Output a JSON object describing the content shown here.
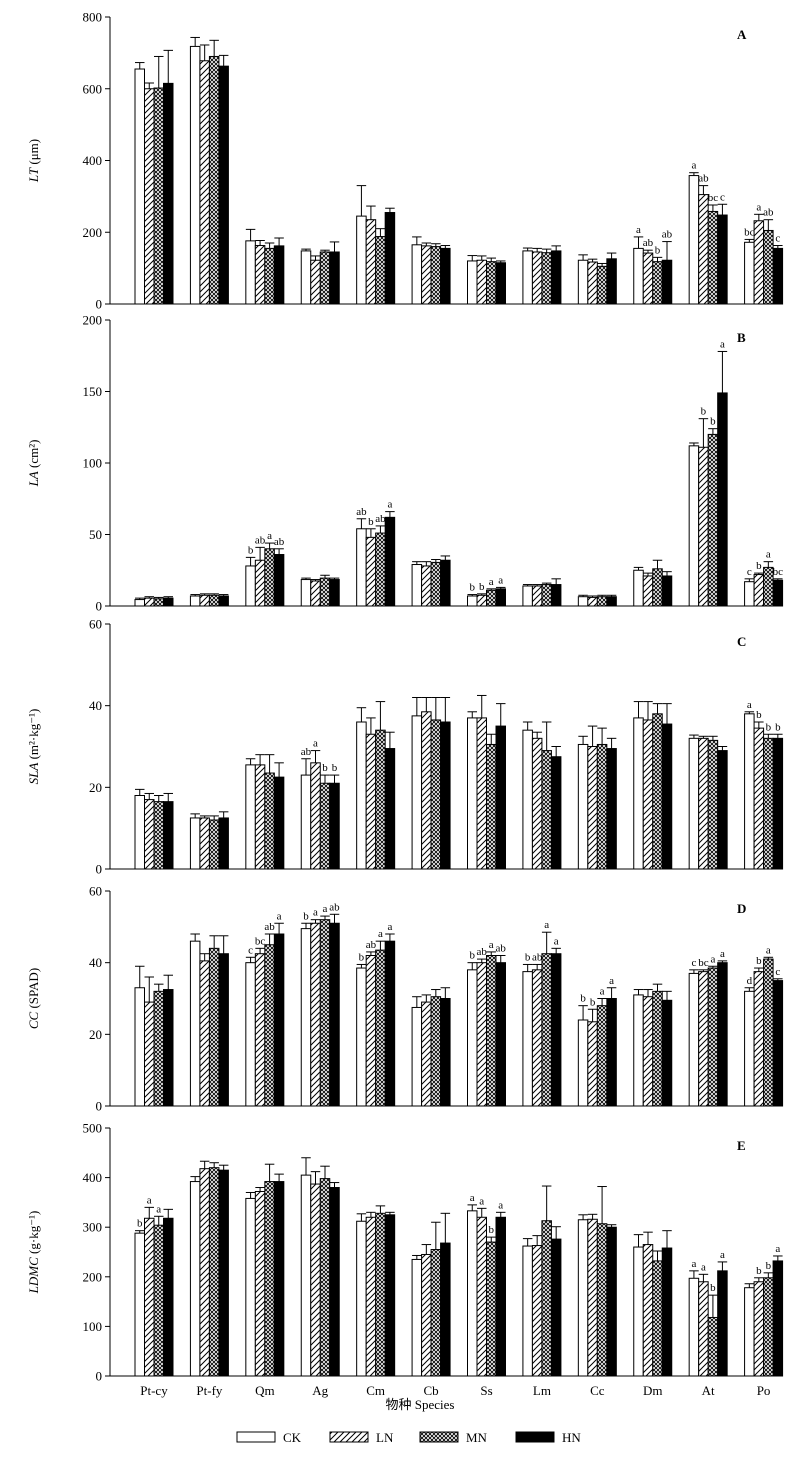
{
  "chart_data": {
    "type": "bar",
    "categories": [
      "Pt-cy",
      "Pt-fy",
      "Qm",
      "Ag",
      "Cm",
      "Cb",
      "Ss",
      "Lm",
      "Cc",
      "Dm",
      "At",
      "Po"
    ],
    "series_names": [
      "CK",
      "LN",
      "MN",
      "HN"
    ],
    "xlabel": "物种 Species",
    "panels": [
      {
        "id": "A",
        "ylabel_var": "LT",
        "ylabel_unit": " (μm)",
        "ylim": [
          0,
          800
        ],
        "yticks": [
          0,
          200,
          400,
          600,
          800
        ],
        "values": [
          [
            655,
            600,
            602,
            615
          ],
          [
            718,
            678,
            690,
            663
          ],
          [
            176,
            163,
            155,
            162
          ],
          [
            148,
            122,
            145,
            145
          ],
          [
            245,
            235,
            188,
            255
          ],
          [
            165,
            162,
            160,
            155
          ],
          [
            120,
            122,
            118,
            115
          ],
          [
            148,
            145,
            143,
            148
          ],
          [
            122,
            117,
            105,
            126
          ],
          [
            155,
            142,
            118,
            122
          ],
          [
            358,
            305,
            258,
            248
          ],
          [
            172,
            232,
            205,
            155
          ]
        ],
        "errors": [
          [
            18,
            16,
            88,
            92
          ],
          [
            25,
            44,
            45,
            30
          ],
          [
            32,
            14,
            15,
            22
          ],
          [
            5,
            12,
            5,
            28
          ],
          [
            85,
            38,
            22,
            12
          ],
          [
            22,
            8,
            8,
            8
          ],
          [
            15,
            12,
            10,
            5
          ],
          [
            8,
            10,
            10,
            14
          ],
          [
            15,
            8,
            8,
            16
          ],
          [
            32,
            8,
            12,
            52
          ],
          [
            8,
            25,
            18,
            30
          ],
          [
            8,
            18,
            30,
            8
          ]
        ],
        "letters": [
          [
            "",
            "",
            "",
            ""
          ],
          [
            "",
            "",
            "",
            ""
          ],
          [
            "",
            "",
            "",
            ""
          ],
          [
            "",
            "",
            "",
            ""
          ],
          [
            "",
            "",
            "",
            ""
          ],
          [
            "",
            "",
            "",
            ""
          ],
          [
            "",
            "",
            "",
            ""
          ],
          [
            "",
            "",
            "",
            ""
          ],
          [
            "",
            "",
            "",
            ""
          ],
          [
            "a",
            "ab",
            "b",
            "ab"
          ],
          [
            "a",
            "ab",
            "bc",
            "c"
          ],
          [
            "bc",
            "a",
            "ab",
            "c"
          ]
        ]
      },
      {
        "id": "B",
        "ylabel_var": "LA",
        "ylabel_unit": " (cm²)",
        "ylim": [
          0,
          200
        ],
        "yticks": [
          0,
          50,
          100,
          150,
          200
        ],
        "values": [
          [
            4.5,
            5.5,
            5,
            5.5
          ],
          [
            7,
            7.5,
            7.5,
            7
          ],
          [
            28,
            32,
            40,
            36
          ],
          [
            18.5,
            17.5,
            19.5,
            18.5
          ],
          [
            54,
            48,
            51,
            62
          ],
          [
            29,
            28,
            30.5,
            32
          ],
          [
            7,
            7.5,
            11,
            12
          ],
          [
            14,
            14,
            15,
            15
          ],
          [
            6.5,
            6,
            6.5,
            6.5
          ],
          [
            25,
            21,
            26,
            21
          ],
          [
            112,
            111,
            120,
            149
          ],
          [
            17,
            22,
            27,
            18
          ]
        ],
        "errors": [
          [
            1,
            1,
            1,
            1
          ],
          [
            1,
            1,
            1,
            1
          ],
          [
            6,
            9,
            4,
            4
          ],
          [
            1,
            1,
            2,
            1
          ],
          [
            7,
            6,
            5,
            4
          ],
          [
            2,
            3,
            2,
            3
          ],
          [
            1,
            1,
            1,
            1
          ],
          [
            1,
            1,
            1,
            4
          ],
          [
            1,
            1,
            1,
            1
          ],
          [
            2,
            2,
            6,
            3
          ],
          [
            2,
            20,
            4,
            29
          ],
          [
            2,
            1,
            4,
            1
          ]
        ],
        "letters": [
          [
            "",
            "",
            "",
            ""
          ],
          [
            "",
            "",
            "",
            ""
          ],
          [
            "b",
            "ab",
            "a",
            "ab"
          ],
          [
            "",
            "",
            "",
            ""
          ],
          [
            "ab",
            "b",
            "ab",
            "a"
          ],
          [
            "",
            "",
            "",
            ""
          ],
          [
            "b",
            "b",
            "a",
            "a"
          ],
          [
            "",
            "",
            "",
            ""
          ],
          [
            "",
            "",
            "",
            ""
          ],
          [
            "",
            "",
            "",
            ""
          ],
          [
            "",
            "b",
            "b",
            "a"
          ],
          [
            "c",
            "b",
            "a",
            "bc"
          ]
        ]
      },
      {
        "id": "C",
        "ylabel_var": "SLA",
        "ylabel_unit": " (m²·kg⁻¹)",
        "ylim": [
          0,
          60
        ],
        "yticks": [
          0,
          20,
          40,
          60
        ],
        "values": [
          [
            18,
            17,
            16.5,
            16.5
          ],
          [
            12.5,
            12.5,
            12,
            12.5
          ],
          [
            25.5,
            25.5,
            23.5,
            22.5
          ],
          [
            23,
            26,
            21,
            21
          ],
          [
            36,
            33,
            34,
            29.5
          ],
          [
            37.5,
            38.5,
            36.5,
            36
          ],
          [
            37,
            37,
            30.5,
            35
          ],
          [
            34,
            32,
            29,
            27.5
          ],
          [
            30.5,
            30,
            30.5,
            29.5
          ],
          [
            37,
            36.5,
            38,
            35.5
          ],
          [
            32,
            32,
            31.5,
            29
          ],
          [
            38,
            34.5,
            32,
            32
          ]
        ],
        "errors": [
          [
            1.5,
            1.5,
            1.5,
            2
          ],
          [
            1,
            0.5,
            1,
            1.5
          ],
          [
            1.5,
            2.5,
            4.5,
            3.5
          ],
          [
            4,
            3,
            2,
            2
          ],
          [
            3.5,
            4,
            7,
            4
          ],
          [
            4.5,
            3.5,
            5.5,
            6
          ],
          [
            1.5,
            5.5,
            2.5,
            5.5
          ],
          [
            2,
            1.5,
            7,
            2.5
          ],
          [
            2,
            5,
            4,
            2.5
          ],
          [
            4,
            4.5,
            2.5,
            5
          ],
          [
            0.8,
            0.5,
            1,
            1
          ],
          [
            0.5,
            1.5,
            1,
            1
          ]
        ],
        "letters": [
          [
            "",
            "",
            "",
            ""
          ],
          [
            "",
            "",
            "",
            ""
          ],
          [
            "",
            "",
            "",
            ""
          ],
          [
            "ab",
            "a",
            "b",
            "b"
          ],
          [
            "",
            "",
            "",
            ""
          ],
          [
            "",
            "",
            "",
            ""
          ],
          [
            "",
            "",
            "",
            ""
          ],
          [
            "",
            "",
            "",
            ""
          ],
          [
            "",
            "",
            "",
            ""
          ],
          [
            "",
            "",
            "",
            ""
          ],
          [
            "",
            "",
            "",
            ""
          ],
          [
            "a",
            "b",
            "b",
            "b"
          ]
        ]
      },
      {
        "id": "D",
        "ylabel_var": "CC",
        "ylabel_unit": " (SPAD)",
        "ylim": [
          0,
          60
        ],
        "yticks": [
          0,
          20,
          40,
          60
        ],
        "values": [
          [
            33,
            29,
            32,
            32.5
          ],
          [
            46,
            40.5,
            44,
            42.5
          ],
          [
            40,
            42.5,
            45,
            48
          ],
          [
            49.5,
            51,
            52,
            51
          ],
          [
            38.5,
            42,
            43.5,
            46
          ],
          [
            27.5,
            29,
            30.5,
            30
          ],
          [
            38,
            40,
            42,
            40
          ],
          [
            37.5,
            38,
            42.5,
            42.5
          ],
          [
            24,
            23.5,
            28,
            30
          ],
          [
            31,
            30.5,
            32,
            29.5
          ],
          [
            37,
            37.5,
            38.5,
            40
          ],
          [
            32,
            37.5,
            41,
            35
          ]
        ],
        "errors": [
          [
            6,
            7,
            2,
            4
          ],
          [
            2,
            2,
            3.5,
            5
          ],
          [
            1.5,
            1.5,
            3,
            3
          ],
          [
            1.5,
            1,
            1,
            2.5
          ],
          [
            1,
            1,
            2.5,
            2
          ],
          [
            3,
            2,
            2,
            3
          ],
          [
            2,
            1,
            1,
            2
          ],
          [
            2,
            1.5,
            6,
            1.5
          ],
          [
            4,
            3.5,
            2,
            3
          ],
          [
            1.5,
            2,
            2,
            2.5
          ],
          [
            1,
            0.5,
            0.5,
            0.5
          ],
          [
            1,
            1,
            0.5,
            0.5
          ]
        ],
        "letters": [
          [
            "",
            "",
            "",
            ""
          ],
          [
            "",
            "",
            "",
            ""
          ],
          [
            "c",
            "bc",
            "ab",
            "a"
          ],
          [
            "b",
            "a",
            "a",
            "ab"
          ],
          [
            "b",
            "ab",
            "a",
            "a"
          ],
          [
            "",
            "",
            "",
            ""
          ],
          [
            "b",
            "ab",
            "a",
            "ab"
          ],
          [
            "b",
            "ab",
            "a",
            "a"
          ],
          [
            "b",
            "b",
            "a",
            "a"
          ],
          [
            "",
            "",
            "",
            ""
          ],
          [
            "c",
            "bc",
            "a",
            "a"
          ],
          [
            "d",
            "b",
            "a",
            "c"
          ]
        ]
      },
      {
        "id": "E",
        "ylabel_var": "LDMC",
        "ylabel_unit": " (g·kg⁻¹)",
        "ylim": [
          0,
          500
        ],
        "yticks": [
          0,
          100,
          200,
          300,
          400,
          500
        ],
        "values": [
          [
            288,
            318,
            304,
            318
          ],
          [
            392,
            418,
            420,
            415
          ],
          [
            358,
            372,
            392,
            392
          ],
          [
            405,
            387,
            398,
            380
          ],
          [
            312,
            320,
            328,
            325
          ],
          [
            235,
            245,
            255,
            268
          ],
          [
            333,
            320,
            270,
            320
          ],
          [
            262,
            263,
            313,
            276
          ],
          [
            315,
            316,
            307,
            300
          ],
          [
            260,
            265,
            232,
            258
          ],
          [
            197,
            190,
            118,
            212
          ],
          [
            178,
            190,
            198,
            232
          ]
        ],
        "errors": [
          [
            5,
            22,
            18,
            18
          ],
          [
            10,
            15,
            10,
            10
          ],
          [
            12,
            8,
            35,
            15
          ],
          [
            35,
            25,
            25,
            10
          ],
          [
            15,
            10,
            15,
            5
          ],
          [
            8,
            20,
            55,
            60
          ],
          [
            12,
            18,
            10,
            10
          ],
          [
            15,
            20,
            70,
            25
          ],
          [
            10,
            10,
            75,
            5
          ],
          [
            25,
            25,
            20,
            35
          ],
          [
            15,
            15,
            45,
            18
          ],
          [
            8,
            8,
            10,
            10
          ]
        ],
        "letters": [
          [
            "b",
            "a",
            "a",
            ""
          ],
          [
            "",
            "",
            "",
            ""
          ],
          [
            "",
            "",
            "",
            ""
          ],
          [
            "",
            "",
            "",
            ""
          ],
          [
            "",
            "",
            "",
            ""
          ],
          [
            "",
            "",
            "",
            ""
          ],
          [
            "a",
            "a",
            "b",
            "a"
          ],
          [
            "",
            "",
            "",
            ""
          ],
          [
            "",
            "",
            "",
            ""
          ],
          [
            "",
            "",
            "",
            ""
          ],
          [
            "a",
            "a",
            "b",
            "a"
          ],
          [
            "",
            "b",
            "b",
            "a"
          ]
        ]
      }
    ]
  }
}
